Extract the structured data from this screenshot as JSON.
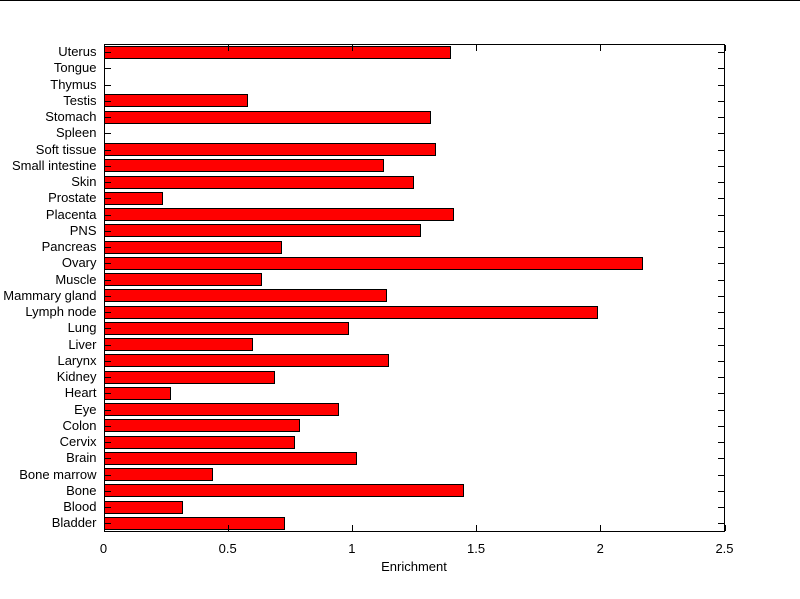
{
  "figure": {
    "background_color": "#ffffff",
    "top_edge_color": "#000000"
  },
  "chart_data": {
    "type": "bar",
    "orientation": "horizontal",
    "title": "",
    "xlabel": "Enrichment",
    "ylabel": "",
    "grid": false,
    "legend_position": "none",
    "xlim": [
      0,
      2.5
    ],
    "x_ticks": [
      0,
      0.5,
      1,
      1.5,
      2,
      2.5
    ],
    "x_tick_labels": [
      "0",
      "0.5",
      "1",
      "1.5",
      "2",
      "2.5"
    ],
    "categories_top_to_bottom": [
      "Uterus",
      "Tongue",
      "Thymus",
      "Testis",
      "Stomach",
      "Spleen",
      "Soft tissue",
      "Small intestine",
      "Skin",
      "Prostate",
      "Placenta",
      "PNS",
      "Pancreas",
      "Ovary",
      "Muscle",
      "Mammary gland",
      "Lymph node",
      "Lung",
      "Liver",
      "Larynx",
      "Kidney",
      "Heart",
      "Eye",
      "Colon",
      "Cervix",
      "Brain",
      "Bone marrow",
      "Bone",
      "Blood",
      "Bladder"
    ],
    "values": [
      1.4,
      0,
      0,
      0.58,
      1.32,
      0,
      1.34,
      1.13,
      1.25,
      0.24,
      1.41,
      1.28,
      0.72,
      2.17,
      0.64,
      1.14,
      1.99,
      0.99,
      0.6,
      1.15,
      0.69,
      0.27,
      0.95,
      0.79,
      0.77,
      1.02,
      0.44,
      1.45,
      0.32,
      0.73
    ],
    "bar_fill_color": "#ff0000",
    "bar_edge_color": "#000000",
    "axis_color": "#000000",
    "tick_direction": "in"
  }
}
